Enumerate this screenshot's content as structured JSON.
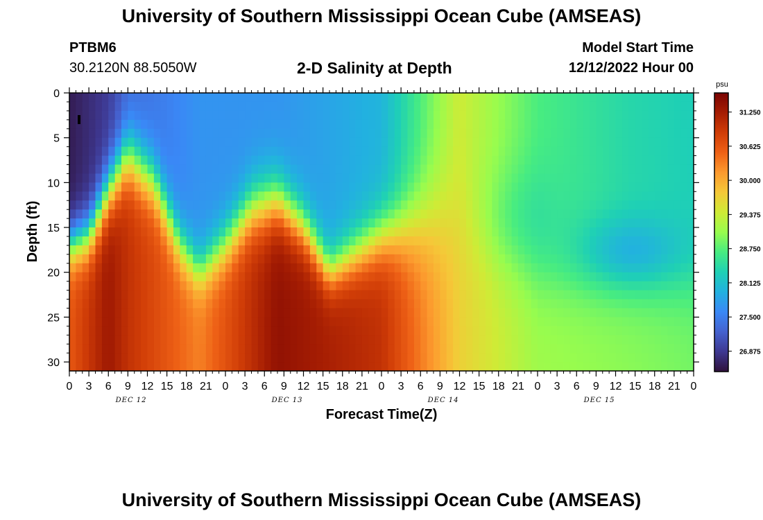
{
  "header": {
    "title": "University of Southern Mississippi Ocean Cube (AMSEAS)",
    "footer_title": "University of Southern Mississippi Ocean Cube (AMSEAS)",
    "station": "PTBM6",
    "coords": "30.2120N  88.5050W",
    "chart_title": "2-D Salinity at Depth",
    "model_start_label": "Model Start Time",
    "model_start_value": "12/12/2022 Hour 00"
  },
  "chart_data": {
    "type": "heatmap",
    "title": "2-D Salinity at Depth",
    "xlabel": "Forecast Time(Z)",
    "ylabel": "Depth (ft)",
    "x_tick_labels": [
      "0",
      "3",
      "6",
      "9",
      "12",
      "15",
      "18",
      "21",
      "0",
      "3",
      "6",
      "9",
      "12",
      "15",
      "18",
      "21",
      "0",
      "3",
      "6",
      "9",
      "12",
      "15",
      "18",
      "21",
      "0",
      "3",
      "6",
      "9",
      "12",
      "15",
      "18",
      "21",
      "0"
    ],
    "day_labels": [
      "DEC 12",
      "DEC 13",
      "DEC 14",
      "DEC 15"
    ],
    "x_range_hours": [
      0,
      96
    ],
    "y_ticks": [
      0,
      5,
      10,
      15,
      20,
      25,
      30
    ],
    "y_range_ft": [
      0,
      31
    ],
    "colorbar": {
      "unit": "psu",
      "ticks": [
        "31.250",
        "30.625",
        "30.000",
        "29.375",
        "28.750",
        "28.125",
        "27.500",
        "26.875"
      ],
      "range": [
        26.5,
        31.6
      ]
    },
    "colors": [
      "#30123b",
      "#3e3891",
      "#4562cf",
      "#3a88f6",
      "#22b1e0",
      "#1fd0b5",
      "#47ec81",
      "#98fc4e",
      "#cfeb36",
      "#f5c838",
      "#fc9a2e",
      "#ee6116",
      "#d03d07",
      "#a51d03",
      "#7a0403"
    ],
    "grid": false,
    "legend": "right",
    "salinity_profile_estimates": [
      {
        "hour": 0,
        "surface_psu": 26.6,
        "bottom_psu": 30.6
      },
      {
        "hour": 6,
        "surface_psu": 26.9,
        "bottom_psu": 31.3
      },
      {
        "hour": 9,
        "surface_psu": 27.3,
        "bottom_psu": 31.0
      },
      {
        "hour": 20,
        "surface_psu": 27.7,
        "bottom_psu": 30.3
      },
      {
        "hour": 32,
        "surface_psu": 27.7,
        "bottom_psu": 31.4
      },
      {
        "hour": 48,
        "surface_psu": 28.0,
        "bottom_psu": 31.0
      },
      {
        "hour": 60,
        "surface_psu": 29.4,
        "bottom_psu": 29.7
      },
      {
        "hour": 72,
        "surface_psu": 28.7,
        "bottom_psu": 29.1
      },
      {
        "hour": 86,
        "surface_psu": 28.4,
        "bottom_psu": 29.0
      },
      {
        "hour": 96,
        "surface_psu": 28.3,
        "bottom_psu": 28.9
      }
    ]
  }
}
